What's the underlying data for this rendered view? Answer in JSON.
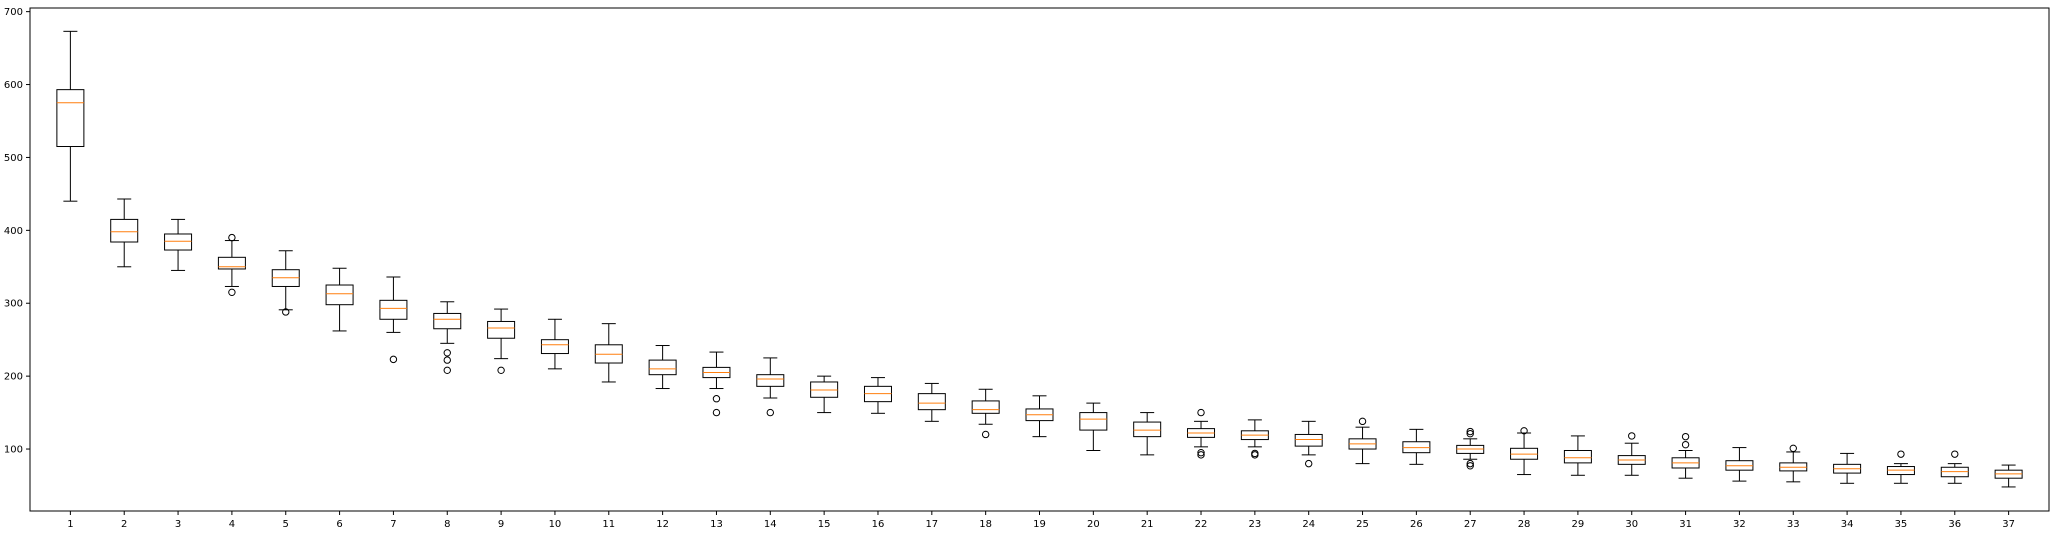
{
  "chart_data": {
    "type": "boxplot",
    "title": "",
    "xlabel": "",
    "ylabel": "",
    "ylim": [
      15,
      705
    ],
    "yticks": [
      100,
      200,
      300,
      400,
      500,
      600,
      700
    ],
    "grid": false,
    "legend": "none",
    "colors": {
      "box": "#000000",
      "median": "#ff7f0e",
      "background": "#ffffff"
    },
    "boxes": [
      {
        "label": "1",
        "whislo": 440,
        "q1": 515,
        "med": 575,
        "q3": 593,
        "whishi": 673,
        "fliers": []
      },
      {
        "label": "2",
        "whislo": 350,
        "q1": 384,
        "med": 398,
        "q3": 415,
        "whishi": 443,
        "fliers": []
      },
      {
        "label": "3",
        "whislo": 345,
        "q1": 373,
        "med": 385,
        "q3": 395,
        "whishi": 415,
        "fliers": []
      },
      {
        "label": "4",
        "whislo": 323,
        "q1": 347,
        "med": 350,
        "q3": 363,
        "whishi": 386,
        "fliers": [
          315,
          390
        ]
      },
      {
        "label": "5",
        "whislo": 291,
        "q1": 323,
        "med": 335,
        "q3": 346,
        "whishi": 372,
        "fliers": [
          288
        ]
      },
      {
        "label": "6",
        "whislo": 262,
        "q1": 298,
        "med": 313,
        "q3": 325,
        "whishi": 348,
        "fliers": []
      },
      {
        "label": "7",
        "whislo": 260,
        "q1": 278,
        "med": 293,
        "q3": 304,
        "whishi": 336,
        "fliers": [
          223
        ]
      },
      {
        "label": "8",
        "whislo": 245,
        "q1": 265,
        "med": 278,
        "q3": 286,
        "whishi": 302,
        "fliers": [
          208,
          222,
          232
        ]
      },
      {
        "label": "9",
        "whislo": 224,
        "q1": 252,
        "med": 266,
        "q3": 275,
        "whishi": 292,
        "fliers": [
          208
        ]
      },
      {
        "label": "10",
        "whislo": 210,
        "q1": 231,
        "med": 243,
        "q3": 250,
        "whishi": 278,
        "fliers": []
      },
      {
        "label": "11",
        "whislo": 192,
        "q1": 218,
        "med": 230,
        "q3": 243,
        "whishi": 272,
        "fliers": []
      },
      {
        "label": "12",
        "whislo": 183,
        "q1": 202,
        "med": 210,
        "q3": 222,
        "whishi": 242,
        "fliers": []
      },
      {
        "label": "13",
        "whislo": 183,
        "q1": 198,
        "med": 205,
        "q3": 212,
        "whishi": 233,
        "fliers": [
          150,
          169
        ]
      },
      {
        "label": "14",
        "whislo": 170,
        "q1": 186,
        "med": 196,
        "q3": 202,
        "whishi": 225,
        "fliers": [
          150
        ]
      },
      {
        "label": "15",
        "whislo": 150,
        "q1": 171,
        "med": 181,
        "q3": 192,
        "whishi": 200,
        "fliers": []
      },
      {
        "label": "16",
        "whislo": 149,
        "q1": 165,
        "med": 176,
        "q3": 186,
        "whishi": 198,
        "fliers": []
      },
      {
        "label": "17",
        "whislo": 138,
        "q1": 154,
        "med": 163,
        "q3": 176,
        "whishi": 190,
        "fliers": []
      },
      {
        "label": "18",
        "whislo": 134,
        "q1": 149,
        "med": 154,
        "q3": 166,
        "whishi": 182,
        "fliers": [
          120
        ]
      },
      {
        "label": "19",
        "whislo": 117,
        "q1": 139,
        "med": 147,
        "q3": 155,
        "whishi": 173,
        "fliers": []
      },
      {
        "label": "20",
        "whislo": 98,
        "q1": 126,
        "med": 141,
        "q3": 150,
        "whishi": 163,
        "fliers": []
      },
      {
        "label": "21",
        "whislo": 92,
        "q1": 117,
        "med": 126,
        "q3": 137,
        "whishi": 150,
        "fliers": []
      },
      {
        "label": "22",
        "whislo": 103,
        "q1": 116,
        "med": 122,
        "q3": 128,
        "whishi": 138,
        "fliers": [
          92,
          95,
          150
        ]
      },
      {
        "label": "23",
        "whislo": 103,
        "q1": 113,
        "med": 119,
        "q3": 125,
        "whishi": 140,
        "fliers": [
          92,
          94
        ]
      },
      {
        "label": "24",
        "whislo": 92,
        "q1": 104,
        "med": 113,
        "q3": 120,
        "whishi": 138,
        "fliers": [
          80
        ]
      },
      {
        "label": "25",
        "whislo": 80,
        "q1": 100,
        "med": 107,
        "q3": 114,
        "whishi": 130,
        "fliers": [
          138
        ]
      },
      {
        "label": "26",
        "whislo": 79,
        "q1": 95,
        "med": 102,
        "q3": 110,
        "whishi": 127,
        "fliers": []
      },
      {
        "label": "27",
        "whislo": 86,
        "q1": 94,
        "med": 100,
        "q3": 105,
        "whishi": 114,
        "fliers": [
          77,
          80,
          121,
          124
        ]
      },
      {
        "label": "28",
        "whislo": 65,
        "q1": 86,
        "med": 93,
        "q3": 101,
        "whishi": 122,
        "fliers": [
          125
        ]
      },
      {
        "label": "29",
        "whislo": 64,
        "q1": 81,
        "med": 88,
        "q3": 98,
        "whishi": 118,
        "fliers": []
      },
      {
        "label": "30",
        "whislo": 64,
        "q1": 79,
        "med": 85,
        "q3": 91,
        "whishi": 108,
        "fliers": [
          118
        ]
      },
      {
        "label": "31",
        "whislo": 60,
        "q1": 74,
        "med": 81,
        "q3": 88,
        "whishi": 98,
        "fliers": [
          106,
          117
        ]
      },
      {
        "label": "32",
        "whislo": 56,
        "q1": 71,
        "med": 77,
        "q3": 84,
        "whishi": 102,
        "fliers": []
      },
      {
        "label": "33",
        "whislo": 55,
        "q1": 70,
        "med": 75,
        "q3": 81,
        "whishi": 96,
        "fliers": [
          101
        ]
      },
      {
        "label": "34",
        "whislo": 53,
        "q1": 67,
        "med": 73,
        "q3": 79,
        "whishi": 94,
        "fliers": []
      },
      {
        "label": "35",
        "whislo": 53,
        "q1": 65,
        "med": 71,
        "q3": 76,
        "whishi": 80,
        "fliers": [
          93
        ]
      },
      {
        "label": "36",
        "whislo": 53,
        "q1": 62,
        "med": 69,
        "q3": 75,
        "whishi": 80,
        "fliers": [
          93
        ]
      },
      {
        "label": "37",
        "whislo": 48,
        "q1": 60,
        "med": 66,
        "q3": 71,
        "whishi": 78,
        "fliers": []
      }
    ]
  }
}
